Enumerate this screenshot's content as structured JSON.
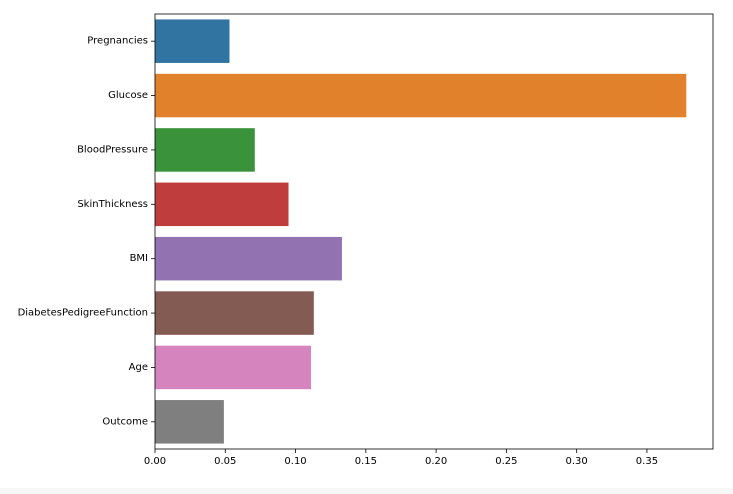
{
  "chart_data": {
    "type": "bar",
    "orientation": "horizontal",
    "title": "",
    "xlabel": "",
    "ylabel": "",
    "categories": [
      "Pregnancies",
      "Glucose",
      "BloodPressure",
      "SkinThickness",
      "BMI",
      "DiabetesPedigreeFunction",
      "Age",
      "Outcome"
    ],
    "values": [
      0.053,
      0.378,
      0.071,
      0.095,
      0.133,
      0.113,
      0.111,
      0.049
    ],
    "colors": [
      "#3274a1",
      "#e1812c",
      "#3a923a",
      "#c03d3e",
      "#9372b2",
      "#845b53",
      "#d684bd",
      "#7f7f7f"
    ],
    "xlim": [
      0,
      0.397
    ],
    "x_ticks": [
      0.0,
      0.05,
      0.1,
      0.15,
      0.2,
      0.25,
      0.3,
      0.35
    ],
    "x_tick_labels": [
      "0.00",
      "0.05",
      "0.10",
      "0.15",
      "0.20",
      "0.25",
      "0.30",
      "0.35"
    ],
    "grid": false,
    "legend": "none"
  }
}
